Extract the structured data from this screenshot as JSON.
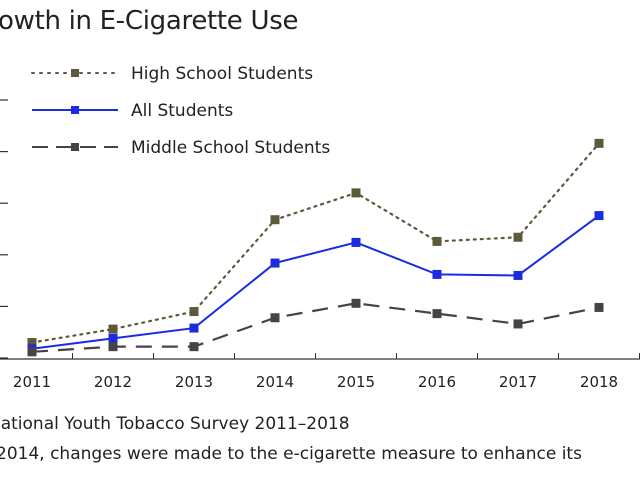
{
  "chart_data": {
    "type": "line",
    "title": "owth in E-Cigarette Use",
    "categories": [
      "2011",
      "2012",
      "2013",
      "2014",
      "2015",
      "2016",
      "2017",
      "2018"
    ],
    "ylim": [
      0,
      25
    ],
    "yticks": [
      0,
      5,
      10,
      15,
      20,
      25
    ],
    "grid": false,
    "legend_placement": "top-left",
    "series": [
      {
        "name": "High School Students",
        "color": "#5c5a3a",
        "style": "dotted",
        "values": [
          1.5,
          2.8,
          4.5,
          13.4,
          16.0,
          11.3,
          11.7,
          20.8
        ]
      },
      {
        "name": "All Students",
        "color": "#1a2be0",
        "style": "solid",
        "values": [
          0.9,
          1.9,
          2.9,
          9.2,
          11.2,
          8.1,
          8.0,
          13.8
        ]
      },
      {
        "name": "Middle School Students",
        "color": "#444444",
        "style": "dashed",
        "values": [
          0.6,
          1.1,
          1.1,
          3.9,
          5.3,
          4.3,
          3.3,
          4.9
        ]
      }
    ]
  },
  "footer": {
    "source": "lational Youth Tobacco Survey 2011–2018",
    "note": "2014, changes were made to the e-cigarette measure to enhance its"
  }
}
